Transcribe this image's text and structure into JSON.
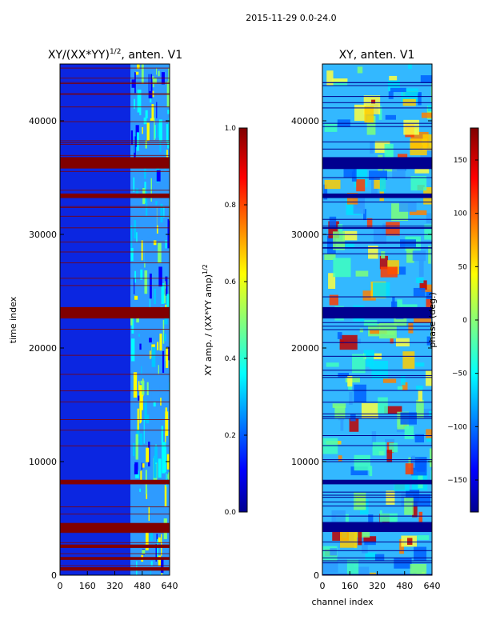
{
  "figure": {
    "suptitle": "2015-11-29 0.0-24.0"
  },
  "colors": {
    "jet_dark_blue": "#00008f",
    "jet_blue": "#0000ff",
    "jet_cyan": "#00ffff",
    "jet_yellow": "#ffff00",
    "jet_red": "#ff0000",
    "jet_dark_red": "#800000"
  },
  "chart_data": [
    {
      "type": "heatmap",
      "panel": "left",
      "title_main": "XY/(XX*YY)",
      "title_sup": "1/2",
      "title_tail": ", anten. V1",
      "xlabel": "",
      "ylabel": "time index",
      "xlim": [
        0,
        640
      ],
      "ylim": [
        0,
        45000
      ],
      "xticks": [
        0,
        160,
        320,
        480,
        640
      ],
      "yticks": [
        0,
        10000,
        20000,
        30000,
        40000
      ],
      "colorbar": {
        "label_main": "XY amp. / (XX*YY amp)",
        "label_sup": "1/2",
        "range": [
          0.0,
          1.0
        ],
        "ticks": [
          0.0,
          0.2,
          0.4,
          0.6,
          0.8,
          1.0
        ],
        "tick_labels": [
          "0.0",
          "0.2",
          "0.4",
          "0.6",
          "0.8",
          "1.0"
        ]
      },
      "flagged_time_bands": [
        [
          35800,
          36800
        ],
        [
          33200,
          33600
        ],
        [
          22600,
          23600
        ],
        [
          8000,
          8400
        ],
        [
          3800,
          4600
        ],
        [
          400,
          700
        ],
        [
          1400,
          1600
        ],
        [
          2400,
          2700
        ]
      ],
      "structure": "low amplitude (~0.1) for channels 0-400; high amplitude bands (~0.5-0.7) for channels 400-640"
    },
    {
      "type": "heatmap",
      "panel": "right",
      "title": "XY, anten. V1",
      "xlabel": "channel index",
      "ylabel": "",
      "xlim": [
        0,
        640
      ],
      "ylim": [
        0,
        45000
      ],
      "xticks": [
        0,
        160,
        320,
        480,
        640
      ],
      "yticks": [
        0,
        10000,
        20000,
        30000,
        40000
      ],
      "colorbar": {
        "label": "phase (deg.)",
        "range": [
          -180,
          180
        ],
        "ticks": [
          -150,
          -100,
          -50,
          0,
          50,
          100,
          150
        ],
        "tick_labels": [
          "−150",
          "−100",
          "−50",
          "0",
          "50",
          "100",
          "150"
        ]
      },
      "flagged_time_bands": [
        [
          35800,
          36800
        ],
        [
          33200,
          33600
        ],
        [
          22600,
          23600
        ],
        [
          8000,
          8400
        ],
        [
          3800,
          4600
        ]
      ],
      "structure": "phase varies with time; regions near 0-50 deg with warm patches (100-180) in channel 0-200 and 500-640"
    }
  ]
}
